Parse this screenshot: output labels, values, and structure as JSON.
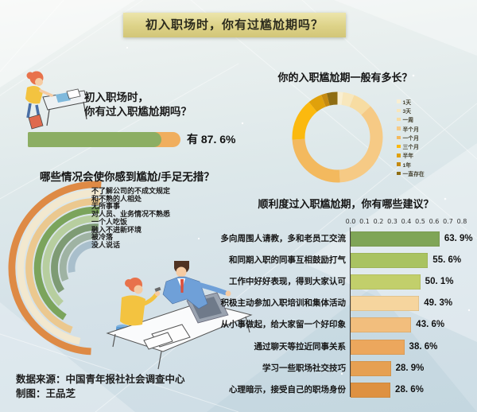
{
  "banner": {
    "title": "初入职场时，你有过尴尬期吗？"
  },
  "intro": {
    "question_line1": "初入职场时，",
    "question_line2": "你有过入职尴尬期吗？",
    "answer_label": "有 87. 6%"
  },
  "source": {
    "line1": "数据来源：中国青年报社社会调查中心",
    "line2": "制图：王品芝"
  },
  "chart_data": [
    {
      "id": "entry-awkward-rate",
      "type": "bar",
      "title": "初入职场时，你有过入职尴尬期吗？",
      "categories": [
        "有"
      ],
      "values": [
        87.6
      ],
      "colors": {
        "filled": "#8CAE63",
        "rest": "#F0AE5E"
      }
    },
    {
      "id": "awkward-duration",
      "type": "pie",
      "title": "你的入职尴尬期一般有多长？",
      "categories": [
        "1天",
        "3天",
        "一周",
        "半个月",
        "一个月",
        "三个月",
        "半年",
        "1年",
        "一直存在"
      ],
      "values": [
        2,
        4,
        7,
        36,
        25,
        15,
        5,
        2,
        4
      ],
      "colors": [
        "#F9EFD2",
        "#F8E7BC",
        "#F7DCA2",
        "#F6CA85",
        "#F3B95E",
        "#FBB90F",
        "#E0A10B",
        "#C58A10",
        "#8F6D12"
      ],
      "legend_position": "right",
      "start_angle_deg": 0,
      "direction": "clockwise"
    },
    {
      "id": "awkward-situations",
      "type": "radial-bar",
      "title": "哪些情况会使你感到尴尬/手足无措？",
      "categories": [
        "不了解公司的不成文规定",
        "和不熟的人相处",
        "无所事事",
        "对人员、业务情况不熟悉",
        "一个人吃饭",
        "融入不进新环境",
        "被冷落",
        "没人说话"
      ],
      "sweep_deg": [
        181,
        172,
        163,
        152,
        140,
        128,
        116,
        104
      ],
      "colors": [
        "#DE8A45",
        "#F2E8CF",
        "#EBC88F",
        "#7BA45C",
        "#B7CE9F",
        "#7E9B74",
        "#9FB3A3",
        "#A9BFCC"
      ]
    },
    {
      "id": "suggestions",
      "type": "bar",
      "title": "顺利度过入职尴尬期，你有哪些建议？",
      "categories": [
        "多向周围人请教，多和老员工交流",
        "和同期入职的同事互相鼓励打气",
        "工作中好好表现，得到大家认可",
        "积极主动参加入职培训和集体活动",
        "从小事做起，给大家留一个好印象",
        "通过聊天等拉近同事关系",
        "学习一些职场社交技巧",
        "心理暗示，接受自己的职场身份"
      ],
      "values": [
        63.9,
        55.6,
        50.1,
        49.3,
        43.6,
        38.6,
        28.9,
        28.6
      ],
      "value_labels": [
        "63. 9%",
        "55. 6%",
        "50. 1%",
        "49. 3%",
        "43. 6%",
        "38. 6%",
        "28. 9%",
        "28. 6%"
      ],
      "xlim": [
        0,
        0.8
      ],
      "xticks": [
        "0.0",
        "0.1",
        "0.2",
        "0.3",
        "0.4",
        "0.5",
        "0.6",
        "0.7",
        "0.8"
      ],
      "colors": [
        "#7FA557",
        "#A9C361",
        "#C2CF6B",
        "#F6D59E",
        "#F2BE7D",
        "#ECA75D",
        "#E6A052",
        "#DE9141"
      ]
    }
  ]
}
